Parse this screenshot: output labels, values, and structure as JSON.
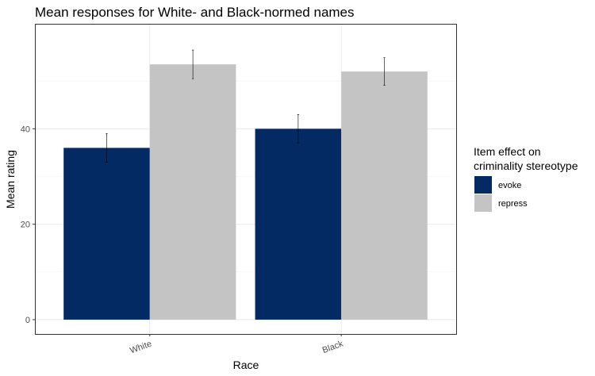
{
  "chart_data": {
    "type": "bar",
    "title": "Mean responses for White- and Black-normed names",
    "xlabel": "Race",
    "ylabel": "Mean rating",
    "categories": [
      "White",
      "Black"
    ],
    "y_ticks": [
      "0",
      "20",
      "40"
    ],
    "ylim": [
      -3,
      62
    ],
    "grid": true,
    "legend_position": "right",
    "legend_title": [
      "Item effect on",
      "criminality stereotype"
    ],
    "series": [
      {
        "name": "evoke",
        "color": "#032a63",
        "values": [
          36.0,
          40.0
        ],
        "error": [
          3.0,
          3.0
        ]
      },
      {
        "name": "repress",
        "color": "#c4c4c4",
        "values": [
          53.5,
          52.0
        ],
        "error": [
          3.0,
          2.9
        ]
      }
    ]
  }
}
